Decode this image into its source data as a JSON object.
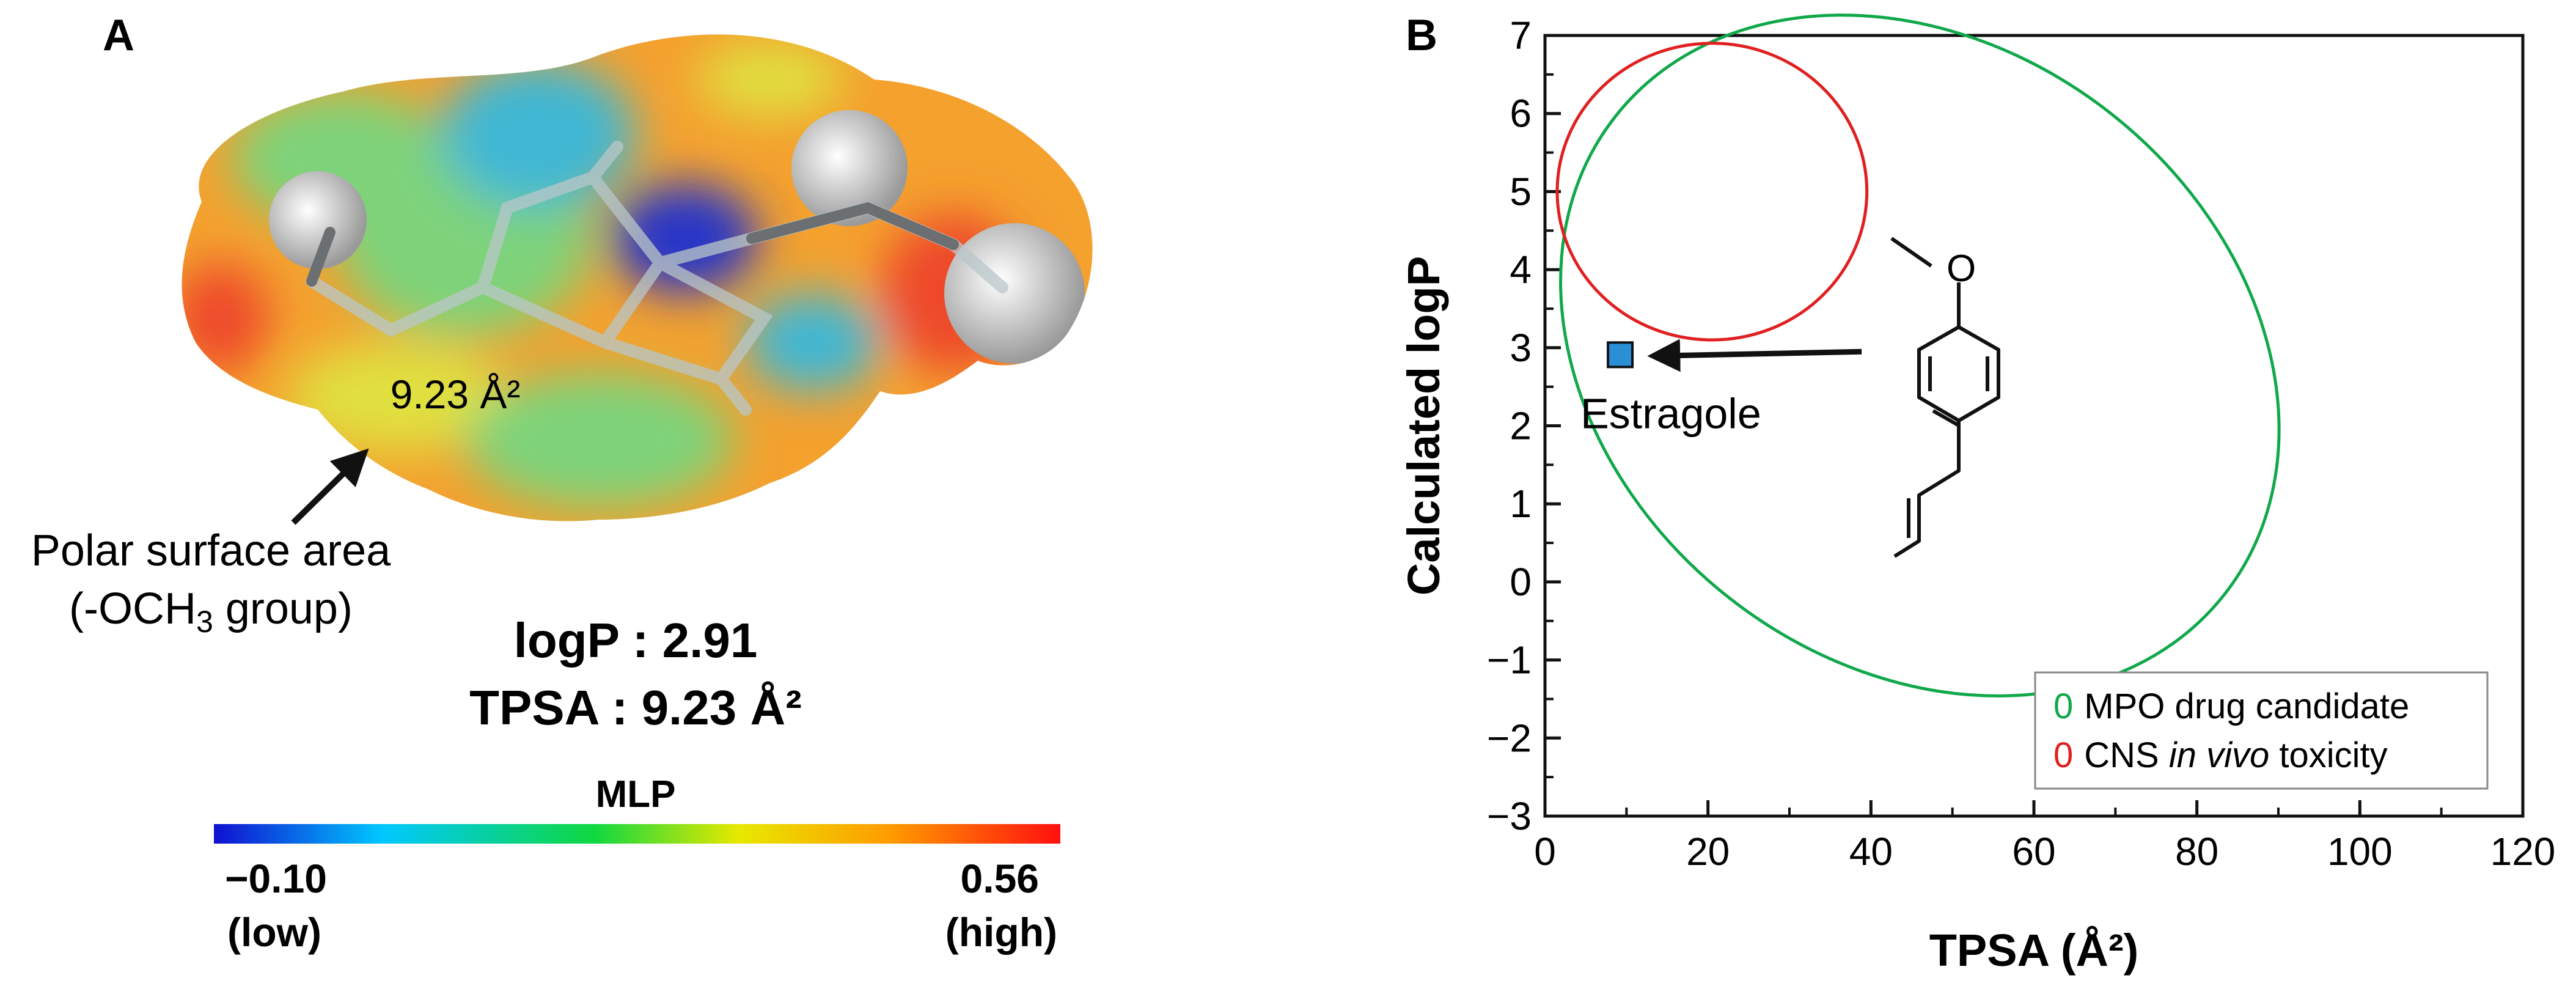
{
  "panel_a": {
    "label": "A",
    "psa_value_label": "9.23 Å²",
    "psa_caption_line1": "Polar surface area",
    "psa_caption_line2_pre": "(-OCH",
    "psa_caption_line2_sub": "3",
    "psa_caption_line2_post": " group)",
    "logp_text": "logP : 2.91",
    "tpsa_text": "TPSA : 9.23 Å²",
    "colorbar": {
      "title": "MLP",
      "min_value": "−0.10",
      "min_word": "(low)",
      "max_value": "0.56",
      "max_word": "(high)",
      "colors": [
        "#1010d0",
        "#00c8ff",
        "#10d840",
        "#e8e800",
        "#ff9a00",
        "#ff1010"
      ]
    },
    "surface_colors": {
      "orange": "#f4a12e",
      "green": "#7ed37a",
      "cyan": "#3fb7d4",
      "blue": "#2535c8",
      "red": "#ee4a2a",
      "yellow": "#e0e040",
      "grey": "#d8d8d8"
    }
  },
  "panel_b": {
    "label": "B",
    "compound_name": "Estragole",
    "structure_oxygen": "O"
  },
  "chart_data": {
    "type": "scatter",
    "xlabel": "TPSA (Å²)",
    "ylabel": "Calculated logP",
    "xlim": [
      0,
      120
    ],
    "ylim": [
      -3,
      7
    ],
    "x_ticks": [
      0,
      20,
      40,
      60,
      80,
      100,
      120
    ],
    "x_tick_labels": [
      "0",
      "20",
      "40",
      "60",
      "80",
      "100",
      "120"
    ],
    "y_ticks": [
      -3,
      -2,
      -1,
      0,
      1,
      2,
      3,
      4,
      5,
      6,
      7
    ],
    "y_tick_labels": [
      "−3",
      "−2",
      "−1",
      "0",
      "1",
      "2",
      "3",
      "4",
      "5",
      "6",
      "7"
    ],
    "points": [
      {
        "label": "Estragole",
        "x": 9.23,
        "y": 2.91,
        "color": "#2b8fd6"
      }
    ],
    "regions": [
      {
        "legend_symbol": "0",
        "legend_label": "MPO drug candidate",
        "color": "#10a84a",
        "shape": "ellipse",
        "center": [
          46,
          2.9
        ],
        "radius_x": 47.5,
        "radius_y": 3.95,
        "rotation_deg": 38
      },
      {
        "legend_symbol": "0",
        "legend_label_pre": "CNS ",
        "legend_label_italic": "in vivo",
        "legend_label_post": " toxicity",
        "color": "#e02020",
        "shape": "ellipse",
        "center": [
          20.5,
          5.0
        ],
        "radius_x": 19,
        "radius_y": 1.9,
        "rotation_deg": 0
      }
    ],
    "legend_position": "bottom-right",
    "grid": false
  }
}
